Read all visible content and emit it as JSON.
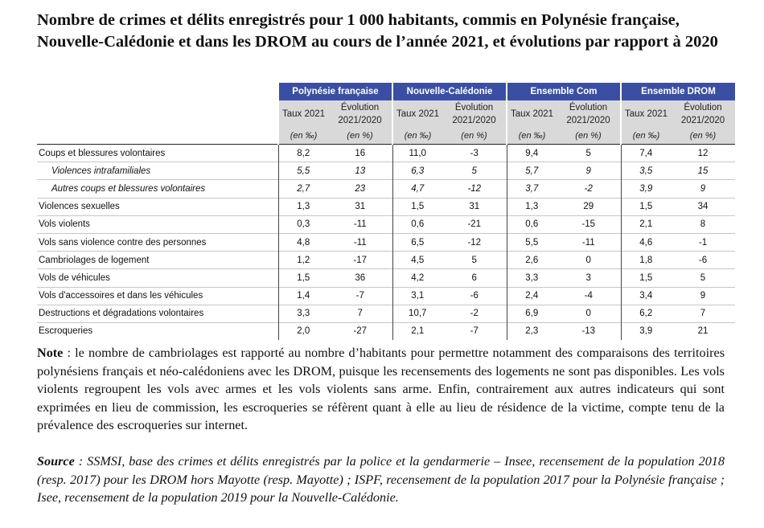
{
  "title": "Nombre de crimes et délits enregistrés pour 1 000 habitants, commis en Polynésie française, Nouvelle-Calédonie et dans les DROM au cours de l’année 2021, et évolutions par rapport à 2020",
  "table": {
    "groups": [
      "Polynésie française",
      "Nouvelle-Calédonie",
      "Ensemble Com",
      "Ensemble DROM"
    ],
    "sub_headers": {
      "taux": "Taux 2021",
      "evolution_line1": "Évolution",
      "evolution_line2": "2021/2020"
    },
    "units": {
      "taux": "(en ‰)",
      "evolution": "(en %)"
    },
    "rows": [
      {
        "label": "Coups et blessures volontaires",
        "style": "main",
        "values": [
          "8,2",
          "16",
          "11,0",
          "-3",
          "9,4",
          "5",
          "7,4",
          "12"
        ]
      },
      {
        "label": "Violences intrafamiliales",
        "style": "sub",
        "values": [
          "5,5",
          "13",
          "6,3",
          "5",
          "5,7",
          "9",
          "3,5",
          "15"
        ]
      },
      {
        "label": "Autres coups et blessures volontaires",
        "style": "sub",
        "values": [
          "2,7",
          "23",
          "4,7",
          "-12",
          "3,7",
          "-2",
          "3,9",
          "9"
        ]
      },
      {
        "label": "Violences sexuelles",
        "style": "main",
        "values": [
          "1,3",
          "31",
          "1,5",
          "31",
          "1,3",
          "29",
          "1,5",
          "34"
        ]
      },
      {
        "label": "Vols violents",
        "style": "main",
        "values": [
          "0,3",
          "-11",
          "0,6",
          "-21",
          "0,6",
          "-15",
          "2,1",
          "8"
        ]
      },
      {
        "label": "Vols sans violence contre des personnes",
        "style": "main",
        "values": [
          "4,8",
          "-11",
          "6,5",
          "-12",
          "5,5",
          "-11",
          "4,6",
          "-1"
        ]
      },
      {
        "label": "Cambriolages de logement",
        "style": "main",
        "values": [
          "1,2",
          "-17",
          "4,5",
          "5",
          "2,6",
          "0",
          "1,8",
          "-6"
        ]
      },
      {
        "label": "Vols de véhicules",
        "style": "main",
        "values": [
          "1,5",
          "36",
          "4,2",
          "6",
          "3,3",
          "3",
          "1,5",
          "5"
        ]
      },
      {
        "label": "Vols d'accessoires et dans les véhicules",
        "style": "main",
        "values": [
          "1,4",
          "-7",
          "3,1",
          "-6",
          "2,4",
          "-4",
          "3,4",
          "9"
        ]
      },
      {
        "label": "Destructions et dégradations volontaires",
        "style": "main",
        "values": [
          "3,3",
          "7",
          "10,7",
          "-2",
          "6,9",
          "0",
          "6,2",
          "7"
        ]
      },
      {
        "label": "Escroqueries",
        "style": "main",
        "values": [
          "2,0",
          "-27",
          "2,1",
          "-7",
          "2,3",
          "-13",
          "3,9",
          "21"
        ]
      }
    ]
  },
  "note": {
    "label": "Note",
    "text": " : le nombre de cambriolages est rapporté au nombre d’habitants pour permettre notamment des comparaisons des territoires polynésiens français et néo-calédoniens avec les DROM, puisque les recensements des logements ne sont pas disponibles. Les vols violents regroupent les vols avec armes et les vols violents sans arme. Enfin, contrairement aux autres indicateurs qui sont exprimées en lieu de commission, les escroqueries se réfèrent quant à elle au lieu de résidence de la victime, compte tenu de la prévalence des escroqueries sur internet."
  },
  "source": {
    "label": "Source",
    "text": " : SSMSI, base des crimes et délits enregistrés par la police et la gendarmerie – Insee, recensement de la population 2018 (resp. 2017) pour les DROM hors Mayotte (resp. Mayotte) ; ISPF, recensement de la population 2017 pour la Polynésie française ; Isee, recensement de la population 2019 pour la Nouvelle-Calédonie."
  },
  "colors": {
    "header_band": "#3a4fa3",
    "subheader_bg": "#d9d9d9",
    "text": "#111111"
  }
}
